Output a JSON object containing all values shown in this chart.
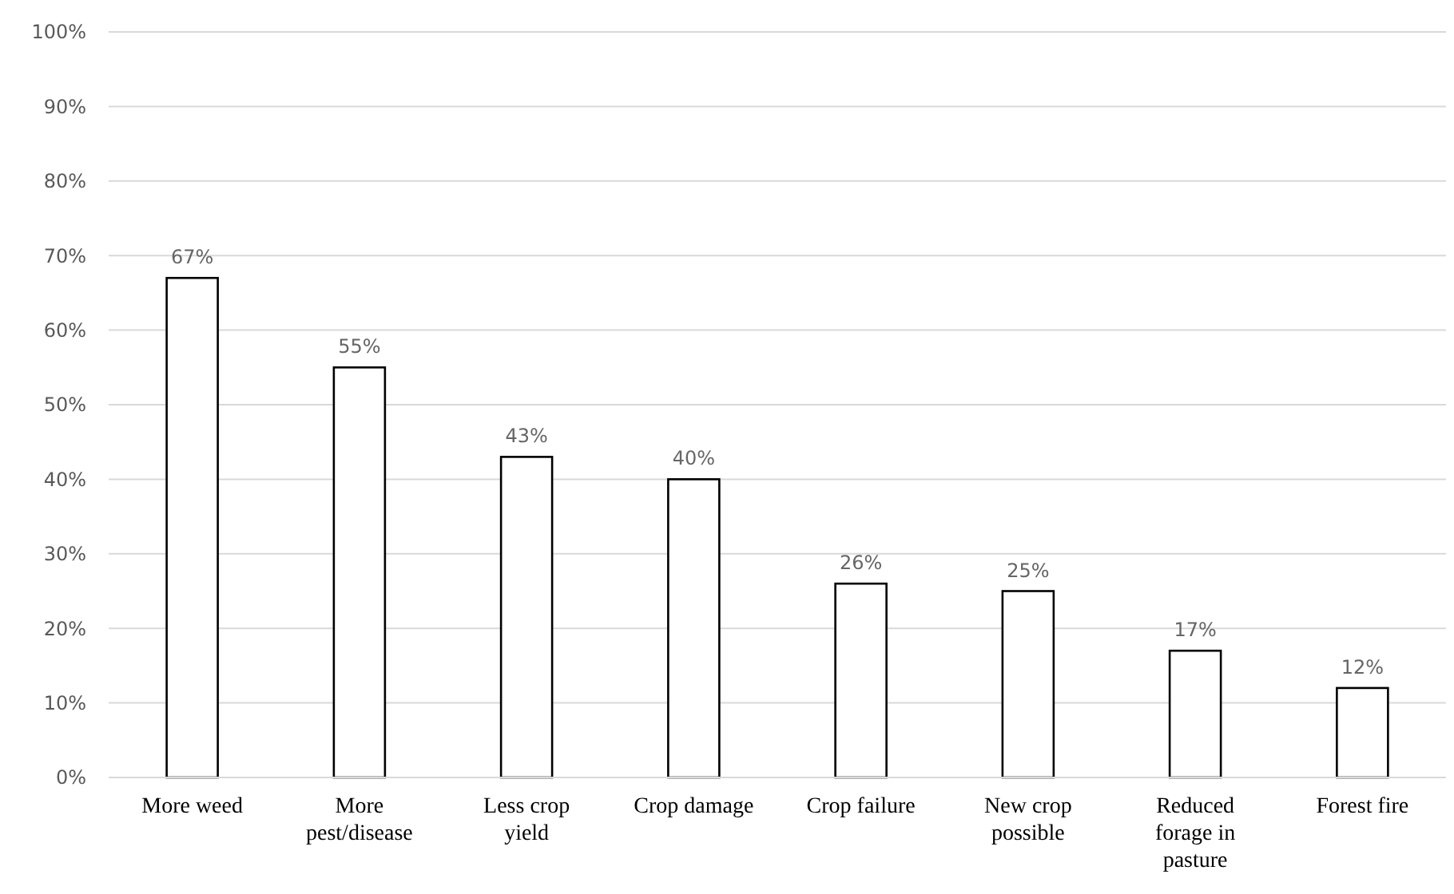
{
  "chart_data": {
    "type": "bar",
    "categories": [
      "More weed",
      "More pest/disease",
      "Less crop yield",
      "Crop damage",
      "Crop failure",
      "New crop possible",
      "Reduced forage in pasture",
      "Forest fire"
    ],
    "values": [
      67,
      55,
      43,
      40,
      26,
      25,
      17,
      12
    ],
    "value_labels": [
      "67%",
      "55%",
      "43%",
      "40%",
      "26%",
      "25%",
      "17%",
      "12%"
    ],
    "color": "#ffffff",
    "ylim": [
      0,
      100
    ],
    "yticks": [
      {
        "value": 0,
        "label": "0%"
      },
      {
        "value": 10,
        "label": "10%"
      },
      {
        "value": 20,
        "label": "20%"
      },
      {
        "value": 30,
        "label": "30%"
      },
      {
        "value": 40,
        "label": "40%"
      },
      {
        "value": 50,
        "label": "50%"
      },
      {
        "value": 60,
        "label": "60%"
      },
      {
        "value": 70,
        "label": "70%"
      },
      {
        "value": 80,
        "label": "80%"
      },
      {
        "value": 90,
        "label": "90%"
      },
      {
        "value": 100,
        "label": "100%"
      }
    ],
    "grid": "y"
  }
}
